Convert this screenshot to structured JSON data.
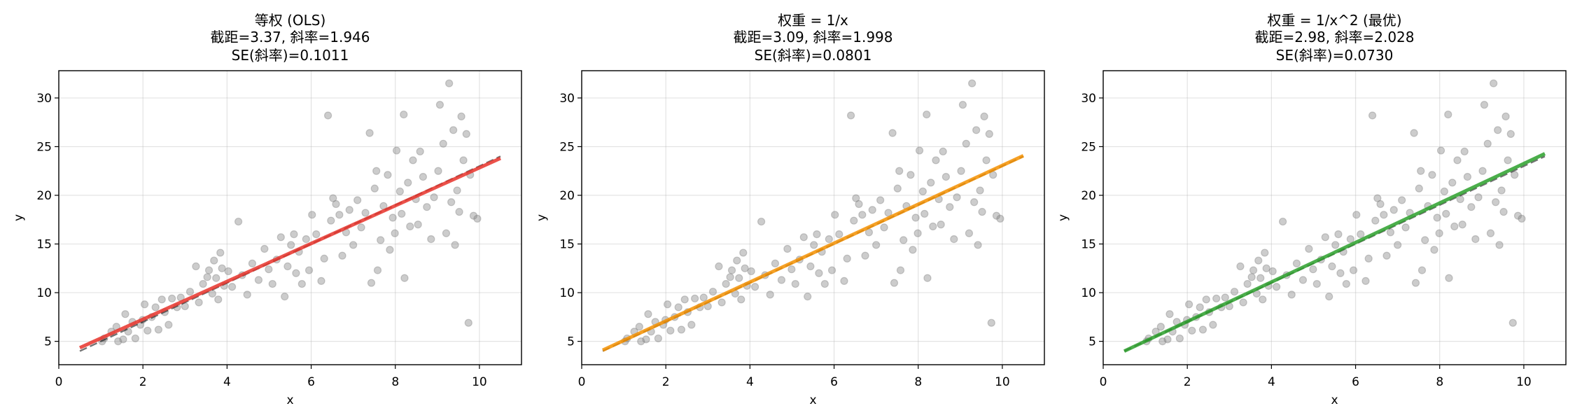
{
  "figure": {
    "background": "#ffffff"
  },
  "chart_data": [
    {
      "type": "scatter",
      "title": [
        "等权 (OLS)",
        "截距=3.37, 斜率=1.946",
        "SE(斜率)=0.1011"
      ],
      "xlabel": "x",
      "ylabel": "y",
      "xlim": [
        0,
        11
      ],
      "ylim": [
        2.6,
        32.8
      ],
      "xticks": [
        0,
        2,
        4,
        6,
        8,
        10
      ],
      "yticks": [
        5,
        10,
        15,
        20,
        25,
        30
      ],
      "grid": true,
      "scatter": {
        "color": "#808080",
        "x": [
          1.03,
          1.08,
          1.25,
          1.37,
          1.41,
          1.53,
          1.58,
          1.65,
          1.75,
          1.82,
          1.94,
          1.99,
          2.04,
          2.11,
          2.21,
          2.3,
          2.37,
          2.45,
          2.52,
          2.61,
          2.69,
          2.81,
          2.9,
          3.0,
          3.12,
          3.26,
          3.33,
          3.43,
          3.53,
          3.57,
          3.65,
          3.69,
          3.74,
          3.79,
          3.84,
          3.88,
          3.93,
          4.03,
          4.12,
          4.27,
          4.36,
          4.48,
          4.6,
          4.75,
          4.89,
          4.99,
          5.08,
          5.18,
          5.28,
          5.37,
          5.44,
          5.52,
          5.59,
          5.64,
          5.71,
          5.78,
          5.88,
          5.95,
          6.02,
          6.12,
          6.24,
          6.31,
          6.4,
          6.47,
          6.52,
          6.59,
          6.67,
          6.74,
          6.83,
          6.91,
          7.0,
          7.1,
          7.19,
          7.29,
          7.39,
          7.43,
          7.51,
          7.55,
          7.58,
          7.65,
          7.72,
          7.82,
          7.87,
          7.94,
          7.99,
          8.03,
          8.11,
          8.15,
          8.2,
          8.22,
          8.3,
          8.35,
          8.42,
          8.49,
          8.54,
          8.59,
          8.66,
          8.75,
          8.85,
          8.92,
          9.02,
          9.06,
          9.14,
          9.21,
          9.28,
          9.33,
          9.38,
          9.42,
          9.47,
          9.52,
          9.57,
          9.62,
          9.69,
          9.74,
          9.78,
          9.86,
          9.95
        ],
        "y": [
          5.0,
          5.3,
          6.0,
          6.5,
          5.0,
          5.2,
          7.8,
          6.0,
          7.0,
          5.3,
          6.7,
          7.2,
          8.8,
          6.1,
          7.5,
          8.5,
          6.2,
          9.3,
          8.0,
          6.7,
          9.4,
          8.5,
          9.5,
          8.6,
          10.1,
          12.7,
          9.0,
          10.9,
          11.6,
          12.3,
          9.9,
          13.3,
          11.5,
          9.3,
          14.1,
          12.5,
          10.7,
          12.2,
          10.6,
          17.3,
          11.8,
          9.8,
          13.0,
          11.3,
          14.5,
          12.4,
          10.9,
          13.4,
          15.7,
          9.6,
          12.7,
          14.9,
          16.0,
          12.0,
          14.2,
          10.9,
          15.5,
          12.3,
          18.0,
          16.0,
          11.2,
          13.5,
          28.2,
          17.4,
          19.7,
          19.1,
          18.0,
          13.8,
          16.2,
          18.5,
          14.9,
          19.5,
          16.7,
          18.2,
          26.4,
          11.0,
          20.7,
          22.5,
          12.3,
          15.4,
          18.9,
          22.1,
          14.4,
          17.7,
          16.1,
          24.6,
          20.4,
          18.1,
          28.3,
          11.5,
          21.3,
          16.8,
          23.6,
          19.6,
          17.0,
          24.5,
          21.9,
          18.8,
          15.5,
          19.8,
          22.5,
          29.3,
          25.3,
          16.1,
          31.5,
          19.3,
          26.7,
          14.9,
          20.5,
          18.3,
          28.1,
          23.6,
          26.3,
          6.9,
          22.1,
          17.9,
          17.6
        ]
      },
      "fit_line": {
        "intercept": 3.37,
        "slope": 1.946,
        "x_range": [
          0.5,
          10.5
        ],
        "color": "#e8332a"
      },
      "reference_line": {
        "x": [
          0.5,
          10.5
        ],
        "y": [
          4.0,
          24.0
        ],
        "color": "#000000",
        "style": "dashed"
      }
    },
    {
      "type": "scatter",
      "title": [
        "权重 = 1/x",
        "截距=3.09, 斜率=1.998",
        "SE(斜率)=0.0801"
      ],
      "xlabel": "x",
      "ylabel": "y",
      "xlim": [
        0,
        11
      ],
      "ylim": [
        2.6,
        32.8
      ],
      "xticks": [
        0,
        2,
        4,
        6,
        8,
        10
      ],
      "yticks": [
        5,
        10,
        15,
        20,
        25,
        30
      ],
      "grid": true,
      "scatter": {
        "color": "#808080",
        "x": [
          1.03,
          1.08,
          1.25,
          1.37,
          1.41,
          1.53,
          1.58,
          1.65,
          1.75,
          1.82,
          1.94,
          1.99,
          2.04,
          2.11,
          2.21,
          2.3,
          2.37,
          2.45,
          2.52,
          2.61,
          2.69,
          2.81,
          2.9,
          3.0,
          3.12,
          3.26,
          3.33,
          3.43,
          3.53,
          3.57,
          3.65,
          3.69,
          3.74,
          3.79,
          3.84,
          3.88,
          3.93,
          4.03,
          4.12,
          4.27,
          4.36,
          4.48,
          4.6,
          4.75,
          4.89,
          4.99,
          5.08,
          5.18,
          5.28,
          5.37,
          5.44,
          5.52,
          5.59,
          5.64,
          5.71,
          5.78,
          5.88,
          5.95,
          6.02,
          6.12,
          6.24,
          6.31,
          6.4,
          6.47,
          6.52,
          6.59,
          6.67,
          6.74,
          6.83,
          6.91,
          7.0,
          7.1,
          7.19,
          7.29,
          7.39,
          7.43,
          7.51,
          7.55,
          7.58,
          7.65,
          7.72,
          7.82,
          7.87,
          7.94,
          7.99,
          8.03,
          8.11,
          8.15,
          8.2,
          8.22,
          8.3,
          8.35,
          8.42,
          8.49,
          8.54,
          8.59,
          8.66,
          8.75,
          8.85,
          8.92,
          9.02,
          9.06,
          9.14,
          9.21,
          9.28,
          9.33,
          9.38,
          9.42,
          9.47,
          9.52,
          9.57,
          9.62,
          9.69,
          9.74,
          9.78,
          9.86,
          9.95
        ],
        "y": [
          5.0,
          5.3,
          6.0,
          6.5,
          5.0,
          5.2,
          7.8,
          6.0,
          7.0,
          5.3,
          6.7,
          7.2,
          8.8,
          6.1,
          7.5,
          8.5,
          6.2,
          9.3,
          8.0,
          6.7,
          9.4,
          8.5,
          9.5,
          8.6,
          10.1,
          12.7,
          9.0,
          10.9,
          11.6,
          12.3,
          9.9,
          13.3,
          11.5,
          9.3,
          14.1,
          12.5,
          10.7,
          12.2,
          10.6,
          17.3,
          11.8,
          9.8,
          13.0,
          11.3,
          14.5,
          12.4,
          10.9,
          13.4,
          15.7,
          9.6,
          12.7,
          14.9,
          16.0,
          12.0,
          14.2,
          10.9,
          15.5,
          12.3,
          18.0,
          16.0,
          11.2,
          13.5,
          28.2,
          17.4,
          19.7,
          19.1,
          18.0,
          13.8,
          16.2,
          18.5,
          14.9,
          19.5,
          16.7,
          18.2,
          26.4,
          11.0,
          20.7,
          22.5,
          12.3,
          15.4,
          18.9,
          22.1,
          14.4,
          17.7,
          16.1,
          24.6,
          20.4,
          18.1,
          28.3,
          11.5,
          21.3,
          16.8,
          23.6,
          19.6,
          17.0,
          24.5,
          21.9,
          18.8,
          15.5,
          19.8,
          22.5,
          29.3,
          25.3,
          16.1,
          31.5,
          19.3,
          26.7,
          14.9,
          20.5,
          18.3,
          28.1,
          23.6,
          26.3,
          6.9,
          22.1,
          17.9,
          17.6
        ]
      },
      "fit_line": {
        "intercept": 3.09,
        "slope": 1.998,
        "x_range": [
          0.5,
          10.5
        ],
        "color": "#f59000"
      },
      "reference_line": {
        "x": [
          0.5,
          10.5
        ],
        "y": [
          4.0,
          24.0
        ],
        "color": "#000000",
        "style": "dashed"
      }
    },
    {
      "type": "scatter",
      "title": [
        "权重 = 1/x^2 (最优)",
        "截距=2.98, 斜率=2.028",
        "SE(斜率)=0.0730"
      ],
      "xlabel": "x",
      "ylabel": "y",
      "xlim": [
        0,
        11
      ],
      "ylim": [
        2.6,
        32.8
      ],
      "xticks": [
        0,
        2,
        4,
        6,
        8,
        10
      ],
      "yticks": [
        5,
        10,
        15,
        20,
        25,
        30
      ],
      "grid": true,
      "scatter": {
        "color": "#808080",
        "x": [
          1.03,
          1.08,
          1.25,
          1.37,
          1.41,
          1.53,
          1.58,
          1.65,
          1.75,
          1.82,
          1.94,
          1.99,
          2.04,
          2.11,
          2.21,
          2.3,
          2.37,
          2.45,
          2.52,
          2.61,
          2.69,
          2.81,
          2.9,
          3.0,
          3.12,
          3.26,
          3.33,
          3.43,
          3.53,
          3.57,
          3.65,
          3.69,
          3.74,
          3.79,
          3.84,
          3.88,
          3.93,
          4.03,
          4.12,
          4.27,
          4.36,
          4.48,
          4.6,
          4.75,
          4.89,
          4.99,
          5.08,
          5.18,
          5.28,
          5.37,
          5.44,
          5.52,
          5.59,
          5.64,
          5.71,
          5.78,
          5.88,
          5.95,
          6.02,
          6.12,
          6.24,
          6.31,
          6.4,
          6.47,
          6.52,
          6.59,
          6.67,
          6.74,
          6.83,
          6.91,
          7.0,
          7.1,
          7.19,
          7.29,
          7.39,
          7.43,
          7.51,
          7.55,
          7.58,
          7.65,
          7.72,
          7.82,
          7.87,
          7.94,
          7.99,
          8.03,
          8.11,
          8.15,
          8.2,
          8.22,
          8.3,
          8.35,
          8.42,
          8.49,
          8.54,
          8.59,
          8.66,
          8.75,
          8.85,
          8.92,
          9.02,
          9.06,
          9.14,
          9.21,
          9.28,
          9.33,
          9.38,
          9.42,
          9.47,
          9.52,
          9.57,
          9.62,
          9.69,
          9.74,
          9.78,
          9.86,
          9.95
        ],
        "y": [
          5.0,
          5.3,
          6.0,
          6.5,
          5.0,
          5.2,
          7.8,
          6.0,
          7.0,
          5.3,
          6.7,
          7.2,
          8.8,
          6.1,
          7.5,
          8.5,
          6.2,
          9.3,
          8.0,
          6.7,
          9.4,
          8.5,
          9.5,
          8.6,
          10.1,
          12.7,
          9.0,
          10.9,
          11.6,
          12.3,
          9.9,
          13.3,
          11.5,
          9.3,
          14.1,
          12.5,
          10.7,
          12.2,
          10.6,
          17.3,
          11.8,
          9.8,
          13.0,
          11.3,
          14.5,
          12.4,
          10.9,
          13.4,
          15.7,
          9.6,
          12.7,
          14.9,
          16.0,
          12.0,
          14.2,
          10.9,
          15.5,
          12.3,
          18.0,
          16.0,
          11.2,
          13.5,
          28.2,
          17.4,
          19.7,
          19.1,
          18.0,
          13.8,
          16.2,
          18.5,
          14.9,
          19.5,
          16.7,
          18.2,
          26.4,
          11.0,
          20.7,
          22.5,
          12.3,
          15.4,
          18.9,
          22.1,
          14.4,
          17.7,
          16.1,
          24.6,
          20.4,
          18.1,
          28.3,
          11.5,
          21.3,
          16.8,
          23.6,
          19.6,
          17.0,
          24.5,
          21.9,
          18.8,
          15.5,
          19.8,
          22.5,
          29.3,
          25.3,
          16.1,
          31.5,
          19.3,
          26.7,
          14.9,
          20.5,
          18.3,
          28.1,
          23.6,
          26.3,
          6.9,
          22.1,
          17.9,
          17.6
        ]
      },
      "fit_line": {
        "intercept": 2.98,
        "slope": 2.028,
        "x_range": [
          0.5,
          10.5
        ],
        "color": "#2ca02c"
      },
      "reference_line": {
        "x": [
          0.5,
          10.5
        ],
        "y": [
          4.0,
          24.0
        ],
        "color": "#000000",
        "style": "dashed"
      }
    }
  ]
}
